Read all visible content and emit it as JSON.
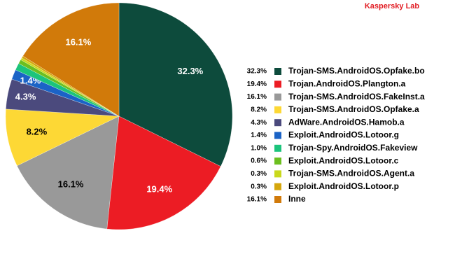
{
  "chart_data": {
    "type": "pie",
    "title": "Kaspersky Lab",
    "categories": [
      "Trojan-SMS.AndroidOS.Opfake.bo",
      "Trojan.AndroidOS.Plangton.a",
      "Trojan-SMS.AndroidOS.FakeInst.a",
      "Trojan-SMS.AndroidOS.Opfake.a",
      "AdWare.AndroidOS.Hamob.a",
      "Exploit.AndroidOS.Lotoor.g",
      "Trojan-Spy.AndroidOS.Fakeview",
      "Exploit.AndroidOS.Lotoor.c",
      "Trojan-SMS.AndroidOS.Agent.a",
      "Exploit.AndroidOS.Lotoor.p",
      "Inne"
    ],
    "values": [
      32.3,
      19.4,
      16.1,
      8.2,
      4.3,
      1.4,
      1.0,
      0.6,
      0.3,
      0.3,
      16.1
    ],
    "value_labels": [
      "32.3%",
      "19.4%",
      "16.1%",
      "8.2%",
      "4.3%",
      "1.4%",
      "1.0%",
      "0.6%",
      "0.3%",
      "0.3%",
      "16.1%"
    ],
    "colors": [
      "#0d4b3c",
      "#ec1c24",
      "#999999",
      "#fdd835",
      "#4b4a7d",
      "#1b63c6",
      "#1cc47c",
      "#6cbf1f",
      "#c9d91c",
      "#d5a60c",
      "#d17a0a"
    ],
    "legend": "right"
  }
}
